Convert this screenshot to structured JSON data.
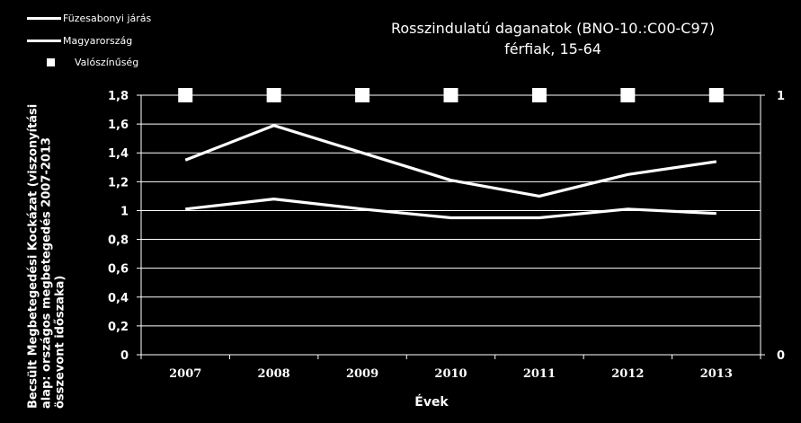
{
  "chart_data": {
    "type": "line",
    "title_line1": "Rosszindulatú daganatok  (BNO-10.:C00-C97)",
    "title_line2": "férfiak, 15-64",
    "xlabel": "Évek",
    "ylabel": "Becsült Megbetegedési Kockázat (viszonyítási alap: országos megbetegedés  2007-2013 összevont időszaka)",
    "categories": [
      "2007",
      "2008",
      "2009",
      "2010",
      "2011",
      "2012",
      "2013"
    ],
    "ylim": [
      0,
      1.8
    ],
    "yticks": [
      "0",
      "0,2",
      "0,4",
      "0,6",
      "0,8",
      "1",
      "1,2",
      "1,4",
      "1,6",
      "1,8"
    ],
    "y2lim": [
      0,
      1
    ],
    "y2ticks": [
      "0",
      "1"
    ],
    "series": [
      {
        "name": "Füzesabonyi járás",
        "type": "line",
        "color": "#ffffff",
        "values": [
          1.35,
          1.59,
          1.4,
          1.21,
          1.1,
          1.25,
          1.34
        ]
      },
      {
        "name": "Magyarország",
        "type": "line",
        "color": "#ffffff",
        "values": [
          1.01,
          1.08,
          1.01,
          0.95,
          0.95,
          1.01,
          0.98
        ]
      },
      {
        "name": "Valószínűség",
        "type": "marker",
        "axis": "secondary",
        "marker": "square",
        "color": "#ffffff",
        "values": [
          1,
          1,
          1,
          1,
          1,
          1,
          1
        ]
      }
    ],
    "grid": true,
    "legend_position": "top-left"
  }
}
